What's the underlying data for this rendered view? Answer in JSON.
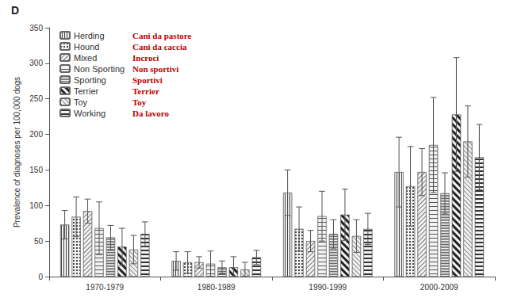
{
  "chart_data": {
    "type": "bar",
    "panel_label": "D",
    "y_label": "Prevalence of diagnoses per 100,000 dogs",
    "categories": [
      "1970-1979",
      "1980-1989",
      "1990-1999",
      "2000-2009"
    ],
    "series": [
      {
        "name": "Herding",
        "translation": "Cani da pastore",
        "values": [
          73,
          22,
          118,
          147
        ],
        "errors": [
          20,
          13,
          32,
          49
        ]
      },
      {
        "name": "Hound",
        "translation": "Cani da caccia",
        "values": [
          84,
          20,
          67,
          127
        ],
        "errors": [
          28,
          15,
          31,
          56
        ]
      },
      {
        "name": "Mixed",
        "translation": "Incroci",
        "values": [
          92,
          20,
          50,
          147
        ],
        "errors": [
          17,
          8,
          15,
          33
        ]
      },
      {
        "name": "Non Sporting",
        "translation": "Non sportivi",
        "values": [
          68,
          18,
          85,
          185
        ],
        "errors": [
          37,
          18,
          35,
          67
        ]
      },
      {
        "name": "Sporting",
        "translation": "Sportivi",
        "values": [
          55,
          13,
          60,
          117
        ],
        "errors": [
          17,
          9,
          20,
          29
        ]
      },
      {
        "name": "Terrier",
        "translation": "Terrier",
        "values": [
          42,
          13,
          87,
          228
        ],
        "errors": [
          26,
          15,
          36,
          80
        ]
      },
      {
        "name": "Toy",
        "translation": "Toy",
        "values": [
          38,
          10,
          57,
          190
        ],
        "errors": [
          20,
          10,
          23,
          50
        ]
      },
      {
        "name": "Working",
        "translation": "Da lavoro",
        "values": [
          60,
          27,
          67,
          168
        ],
        "errors": [
          17,
          10,
          22,
          46
        ]
      }
    ],
    "ylim": [
      0,
      350
    ],
    "yticks": [
      0,
      50,
      100,
      150,
      200,
      250,
      300,
      350
    ],
    "grid": false,
    "legend": "top-left"
  }
}
